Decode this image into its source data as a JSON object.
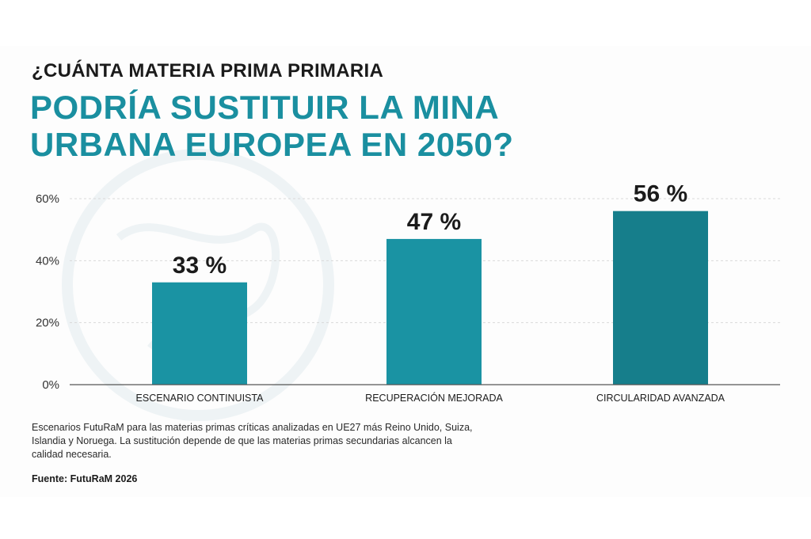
{
  "colors": {
    "accent": "#1A8FA0",
    "bar": "#1A93A3",
    "bar_last": "#167E8B",
    "text": "#1b1b1b",
    "grid": "#d9d9d9",
    "watermark": "#eef3f5"
  },
  "title": {
    "line1": "¿CUÁNTA MATERIA PRIMA PRIMARIA",
    "line2a": "PODRÍA SUSTITUIR LA MINA",
    "line2b": "URBANA EUROPEA EN 2050?"
  },
  "chart_data": {
    "type": "bar",
    "categories": [
      "ESCENARIO CONTINUISTA",
      "RECUPERACIÓN MEJORADA",
      "CIRCULARIDAD AVANZADA"
    ],
    "values": [
      33,
      47,
      56
    ],
    "data_labels": [
      "33 %",
      "47 %",
      "56 %"
    ],
    "yticks": [
      0,
      20,
      40,
      60
    ],
    "ytick_labels": [
      "0%",
      "20%",
      "40%",
      "60%"
    ],
    "ylim": [
      0,
      60
    ],
    "grid": true,
    "legend": "none"
  },
  "note": "Escenarios FutuRaM para las materias primas críticas analizadas en UE27 más Reino Unido, Suiza, Islandia y Noruega. La sustitución depende de que las materias primas secundarias alcancen la calidad necesaria.",
  "source": "Fuente: FutuRaM 2026",
  "watermark_icon": "globe-watermark-icon"
}
